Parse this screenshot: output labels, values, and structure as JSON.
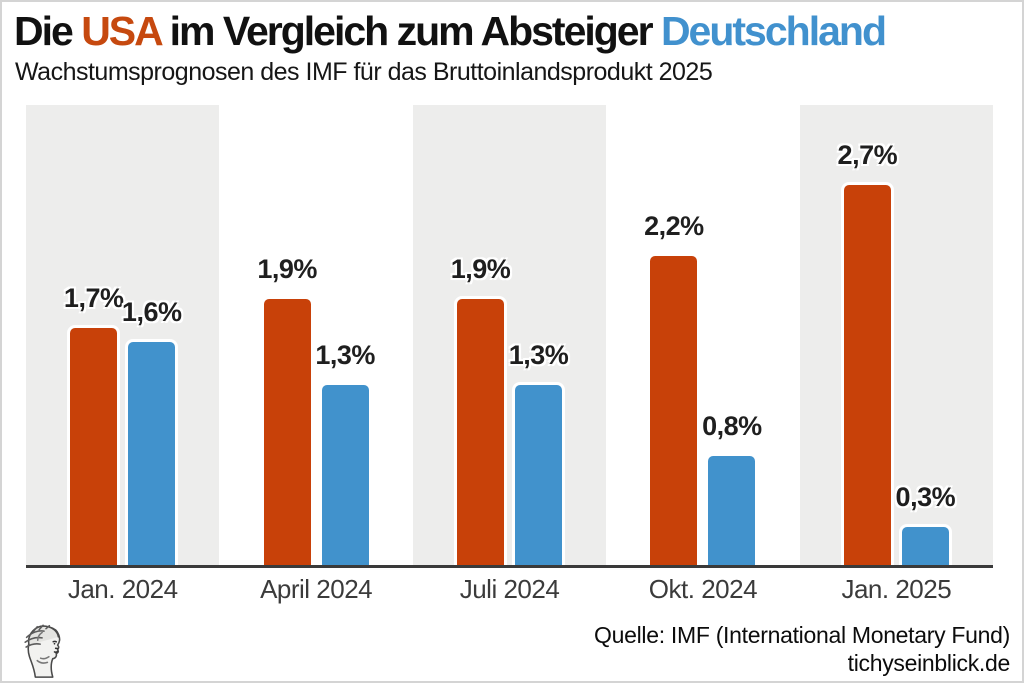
{
  "header": {
    "title_part1": "Die ",
    "title_usa": "USA",
    "title_part2": " im Vergleich zum Absteiger ",
    "title_germany": "Deutschland",
    "subtitle": "Wachstumsprognosen des IMF für das Bruttoinlandsprodukt 2025"
  },
  "colors": {
    "title_usa_accent": "#C6490F",
    "title_germany_accent": "#4191CE",
    "bar_usa": "#C84109",
    "bar_germany": "#4192CC",
    "band_shade": "#EDEDEC",
    "axis": "#3A3A3A",
    "value_label": "#1F1F1F"
  },
  "chart_data": {
    "type": "bar",
    "title": "Die USA im Vergleich zum Absteiger Deutschland",
    "subtitle": "Wachstumsprognosen des IMF für das Bruttoinlandsprodukt 2025",
    "categories": [
      "Jan. 2024",
      "April 2024",
      "Juli 2024",
      "Okt. 2024",
      "Jan. 2025"
    ],
    "series": [
      {
        "name": "USA",
        "color": "#C84109",
        "values": [
          1.7,
          1.9,
          1.9,
          2.2,
          2.7
        ],
        "labels": [
          "1,7%",
          "1,9%",
          "1,9%",
          "2,2%",
          "2,7%"
        ]
      },
      {
        "name": "Deutschland",
        "color": "#4192CC",
        "values": [
          1.6,
          1.3,
          1.3,
          0.8,
          0.3
        ],
        "labels": [
          "1,6%",
          "1,3%",
          "1,3%",
          "0,8%",
          "0,3%"
        ]
      }
    ],
    "unit": "%",
    "xlabel": "",
    "ylabel": "",
    "ylim": [
      0,
      3.24
    ],
    "grid": false,
    "legend_position": "none",
    "background_bands": "alternating gray/white per category"
  },
  "footer": {
    "source": "Quelle: IMF (International Monetary Fund)",
    "site": "tichyseinblick.de",
    "logo_name": "hermes-head-engraving"
  }
}
